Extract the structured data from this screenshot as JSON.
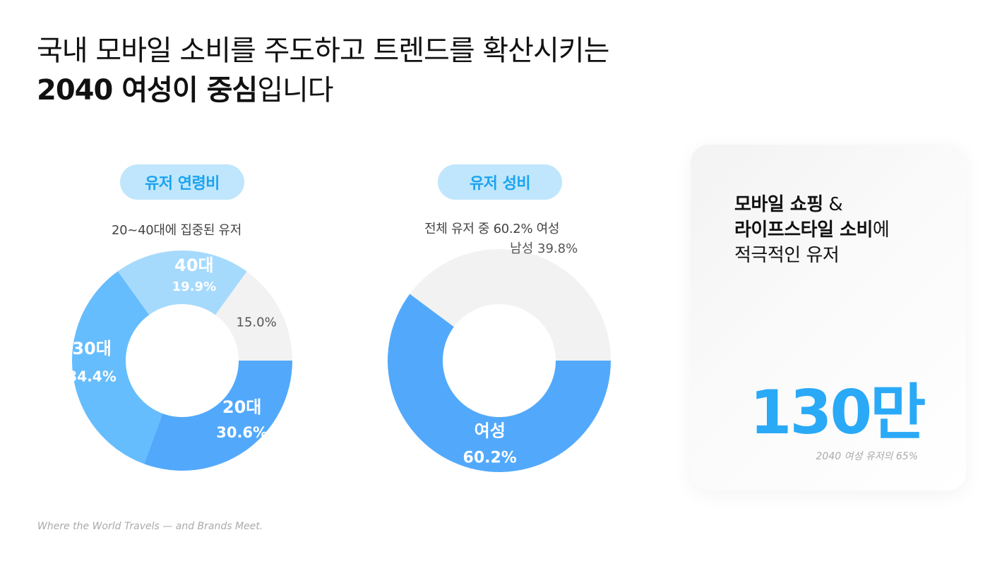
{
  "headline": {
    "line1": "국내 모바일 소비를 주도하고 트렌드를 확산시키는",
    "line2_bold": "2040 여성이 중심",
    "line2_rest": "입니다"
  },
  "age_section": {
    "pill": "유저 연령비",
    "subtitle": "20~40대에 집중된 유저"
  },
  "gender_section": {
    "pill": "유저 성비",
    "subtitle": "전체 유저 중 60.2% 여성"
  },
  "card": {
    "line1_bold": "모바일 쇼핑",
    "line1_rest": " &",
    "line2_bold": "라이프스타일 소비",
    "line2_rest": "에",
    "line3": "적극적인 유저",
    "big_number": "130만",
    "caption": "2040 여성 유저의 65%"
  },
  "footer": "Where the World Travels — and Brands Meet.",
  "colors": {
    "age_20": "#52a9fb",
    "age_30": "#65bdfd",
    "age_40": "#a6dafd",
    "age_other": "#f2f2f2",
    "female": "#52a9fb",
    "male": "#f2f2f2",
    "accent": "#2aa9f7"
  },
  "chart_data": [
    {
      "type": "pie",
      "title": "유저 연령비",
      "slices": [
        {
          "name": "20대",
          "value": 30.6,
          "label": "30.6%"
        },
        {
          "name": "30대",
          "value": 34.4,
          "label": "34.4%"
        },
        {
          "name": "40대",
          "value": 19.9,
          "label": "19.9%"
        },
        {
          "name": "",
          "value": 15.0,
          "label": "15.0%"
        }
      ]
    },
    {
      "type": "pie",
      "title": "유저 성비",
      "slices": [
        {
          "name": "여성",
          "value": 60.2,
          "label": "60.2%"
        },
        {
          "name": "남성",
          "value": 39.8,
          "label": "39.8%"
        }
      ]
    }
  ]
}
